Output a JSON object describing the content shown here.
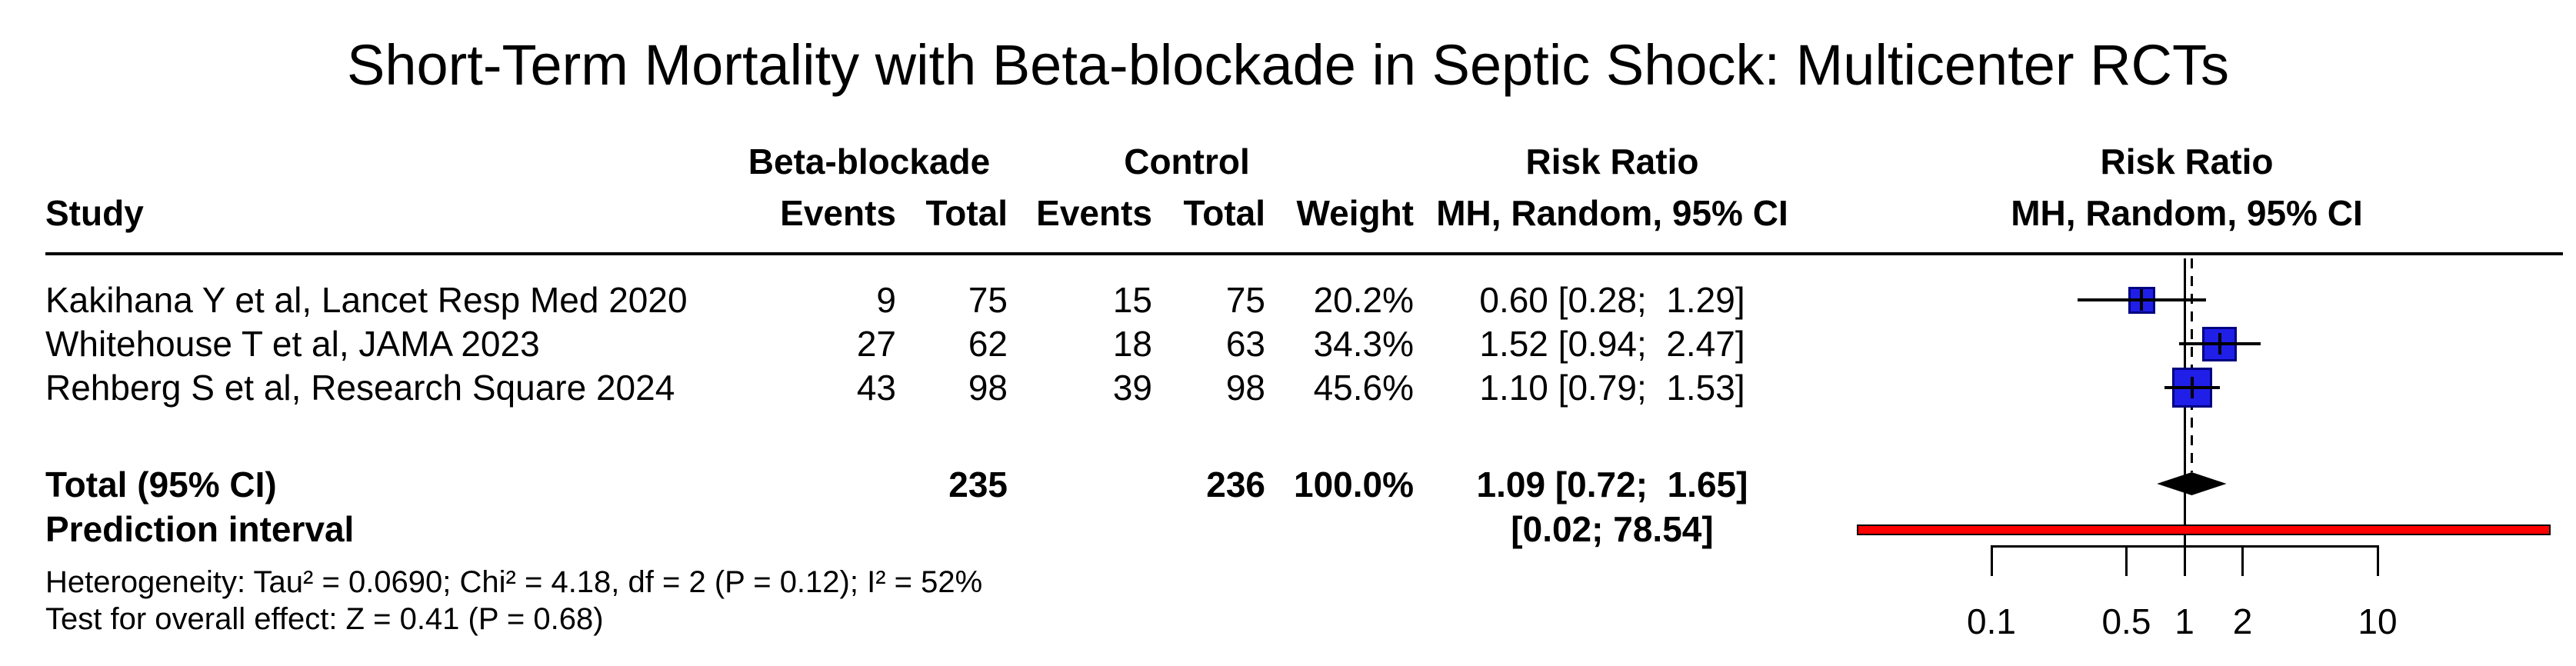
{
  "title": "Short-Term Mortality with Beta-blockade in Septic Shock: Multicenter RCTs",
  "table": {
    "group_headers": {
      "treatment": "Beta-blockade",
      "control": "Control",
      "risk_ratio": "Risk Ratio",
      "risk_ratio_plot": "Risk Ratio"
    },
    "column_headers": {
      "study": "Study",
      "events_treatment": "Events",
      "total_treatment": "Total",
      "events_control": "Events",
      "total_control": "Total",
      "weight": "Weight",
      "rr_ci": "MH, Random, 95% CI",
      "rr_ci_plot": "MH, Random, 95% CI"
    },
    "rows": [
      {
        "study": "Kakihana Y et al, Lancet Resp Med 2020",
        "events_treatment": "9",
        "total_treatment": "75",
        "events_control": "15",
        "total_control": "75",
        "weight": "20.2%",
        "rr_ci": "0.60 [0.28;  1.29]"
      },
      {
        "study": "Whitehouse T et al, JAMA 2023",
        "events_treatment": "27",
        "total_treatment": "62",
        "events_control": "18",
        "total_control": "63",
        "weight": "34.3%",
        "rr_ci": "1.52 [0.94;  2.47]"
      },
      {
        "study": "Rehberg S et al, Research Square 2024",
        "events_treatment": "43",
        "total_treatment": "98",
        "events_control": "39",
        "total_control": "98",
        "weight": "45.6%",
        "rr_ci": "1.10 [0.79;  1.53]"
      }
    ],
    "total_row": {
      "label": "Total (95% CI)",
      "total_treatment": "235",
      "total_control": "236",
      "weight": "100.0%",
      "rr_ci": "1.09 [0.72;  1.65]"
    },
    "prediction_row": {
      "label": "Prediction interval",
      "rr_ci": "[0.02; 78.54]"
    }
  },
  "footnotes": {
    "heterogeneity": "Heterogeneity: Tau² = 0.0690; Chi² = 4.18, df = 2 (P = 0.12); I² = 52%",
    "overall_effect": "Test for overall effect: Z = 0.41 (P = 0.68)"
  },
  "colors": {
    "square_fill": "#1f1fe8",
    "square_border": "#000080",
    "diamond": "#000000",
    "prediction_fill": "#ff0000",
    "prediction_border": "#000000",
    "line": "#000000"
  },
  "chart_data": {
    "type": "scatter",
    "subtype": "forest-plot",
    "title": "Short-Term Mortality with Beta-blockade in Septic Shock: Multicenter RCTs",
    "effect_measure": "Risk Ratio (MH, Random, 95% CI)",
    "x_scale": "log",
    "x_ticks": [
      0.1,
      0.5,
      1,
      2,
      10
    ],
    "null_line": 1,
    "studies": [
      {
        "label": "Kakihana Y et al, Lancet Resp Med 2020",
        "events_treatment": 9,
        "total_treatment": 75,
        "events_control": 15,
        "total_control": 75,
        "weight_pct": 20.2,
        "rr": 0.6,
        "ci_low": 0.28,
        "ci_high": 1.29
      },
      {
        "label": "Whitehouse T et al, JAMA 2023",
        "events_treatment": 27,
        "total_treatment": 62,
        "events_control": 18,
        "total_control": 63,
        "weight_pct": 34.3,
        "rr": 1.52,
        "ci_low": 0.94,
        "ci_high": 2.47
      },
      {
        "label": "Rehberg S et al, Research Square 2024",
        "events_treatment": 43,
        "total_treatment": 98,
        "events_control": 39,
        "total_control": 98,
        "weight_pct": 45.6,
        "rr": 1.1,
        "ci_low": 0.79,
        "ci_high": 1.53
      }
    ],
    "total": {
      "label": "Total (95% CI)",
      "total_treatment": 235,
      "total_control": 236,
      "weight_pct": 100.0,
      "rr": 1.09,
      "ci_low": 0.72,
      "ci_high": 1.65
    },
    "prediction_interval": {
      "low": 0.02,
      "high": 78.54
    },
    "heterogeneity": {
      "tau2": 0.069,
      "chi2": 4.18,
      "df": 2,
      "p_heterogeneity": 0.12,
      "i2_pct": 52
    },
    "overall_effect": {
      "z": 0.41,
      "p": 0.68
    }
  }
}
